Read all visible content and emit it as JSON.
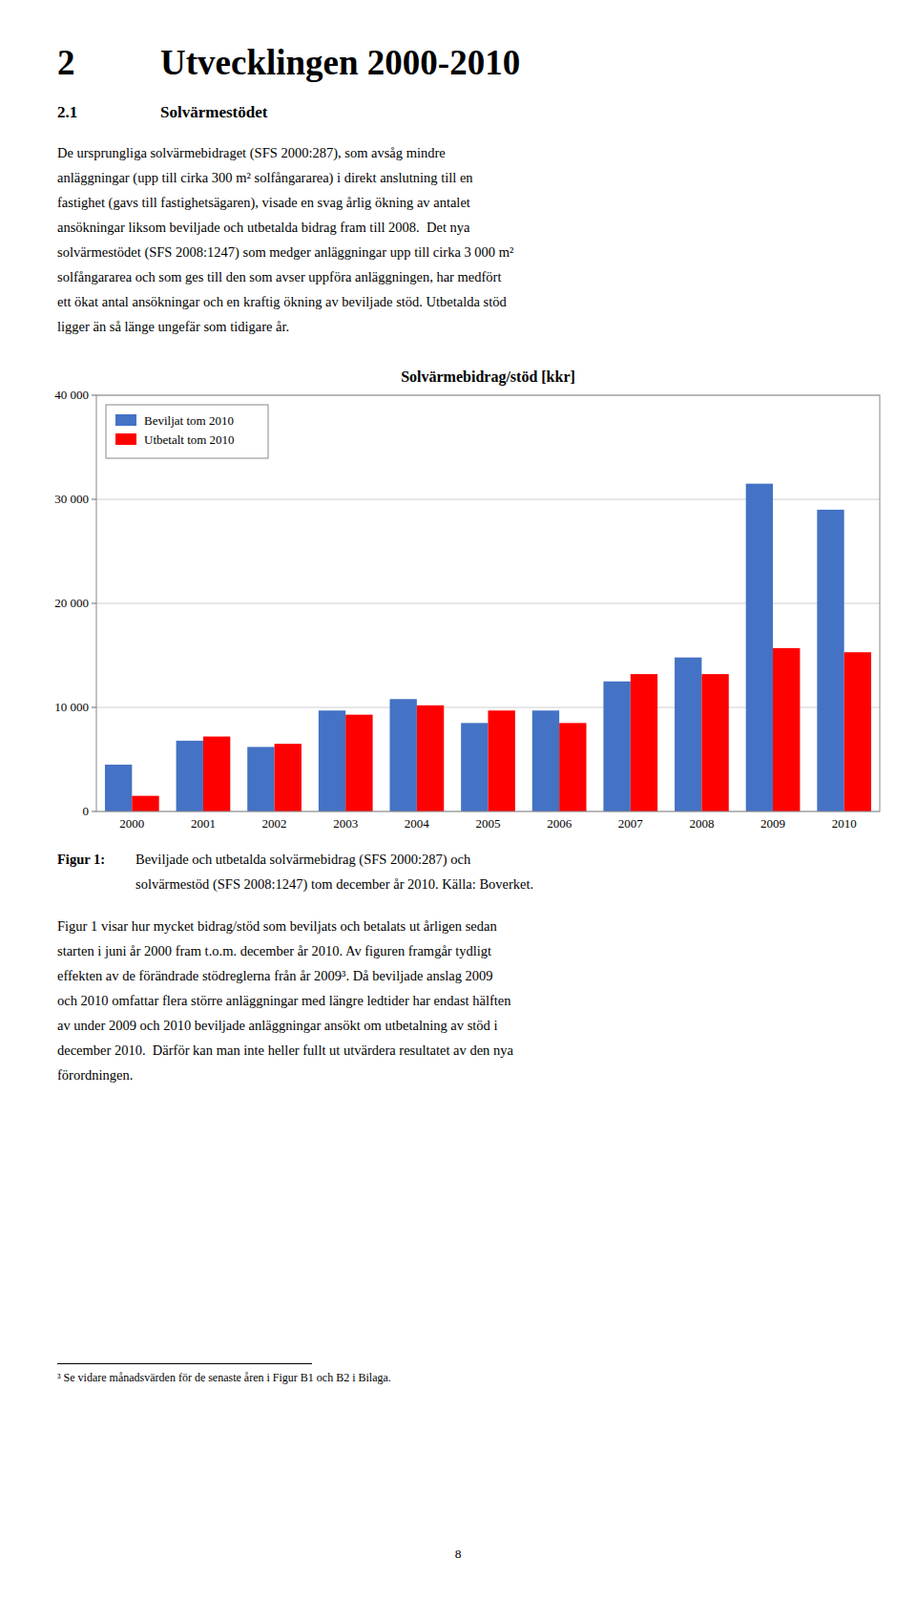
{
  "page": {
    "heading1": "2",
    "heading1_text": "Utvecklingen 2000-2010",
    "heading2": "2.1",
    "heading2_text": "Solvärmestödet",
    "body_text1_lines": [
      "De ursprungliga solvärmebidraget (SFS 2000:287), som avsåg mindre",
      "anläggningar (upp till cirka 300 m² solfångararea) i direkt anslutning till en",
      "fastighet (gavs till fastighetsägaren), visade en svag årlig ökning av antalet",
      "ansökningar liksom beviljade och utbetalda bidrag fram till 2008.  Det nya",
      "solvärmestödet (SFS 2008:1247) som medger anläggningar upp till cirka 3 000 m²",
      "solfångararea och som ges till den som avser uppföra anläggningen, har medfört",
      "ett ökat antal ansökningar och en kraftig ökning av beviljade stöd. Utbetalda stöd",
      "ligger än så länge ungefär som tidigare år."
    ],
    "fig_caption_bold": "Figur 1:",
    "fig_caption_lines": [
      "Beviljade och utbetalda solvärmebidrag (SFS 2000:287) och",
      "solvärmestöd (SFS 2008:1247) tom december år 2010. Källa: Boverket."
    ],
    "body_text2_lines": [
      "Figur 1 visar hur mycket bidrag/stöd som beviljats och betalats ut årligen sedan",
      "starten i juni år 2000 fram t.o.m. december år 2010. Av figuren framgår tydligt",
      "effekten av de förändrade stödreglerna från år 2009³. Då beviljade anslag 2009",
      "och 2010 omfattar flera större anläggningar med längre ledtider har endast hälften",
      "av under 2009 och 2010 beviljade anläggningar ansökt om utbetalning av stöd i",
      "december 2010.  Därför kan man inte heller fullt ut utvärdera resultatet av den nya",
      "förordningen."
    ],
    "footnote": "³ Se vidare månadsvärden för de senaste åren i Figur B1 och B2 i Bilaga.",
    "page_number": "8"
  },
  "chart_data": {
    "type": "bar",
    "title": "Solvärmebidrag/stöd [kkr]",
    "categories": [
      "2000",
      "2001",
      "2002",
      "2003",
      "2004",
      "2005",
      "2006",
      "2007",
      "2008",
      "2009",
      "2010"
    ],
    "series": [
      {
        "name": "Beviljat tom 2010",
        "color": "#4472C4",
        "values": [
          4500,
          6800,
          6200,
          9700,
          10800,
          8500,
          9700,
          12500,
          14800,
          31500,
          29000
        ]
      },
      {
        "name": "Utbetalt tom 2010",
        "color": "#FF0000",
        "values": [
          1500,
          7200,
          6500,
          9300,
          10200,
          9700,
          8500,
          13200,
          13200,
          15700,
          15300
        ]
      }
    ],
    "ylim": [
      0,
      40000
    ],
    "yticks": [
      0,
      {
        "value": 10000,
        "label": "10 000"
      },
      {
        "value": 20000,
        "label": "20 000"
      },
      {
        "value": 30000,
        "label": "30 000"
      },
      {
        "value": 40000,
        "label": "40 000"
      }
    ],
    "grid": true,
    "legend": "upper left"
  }
}
